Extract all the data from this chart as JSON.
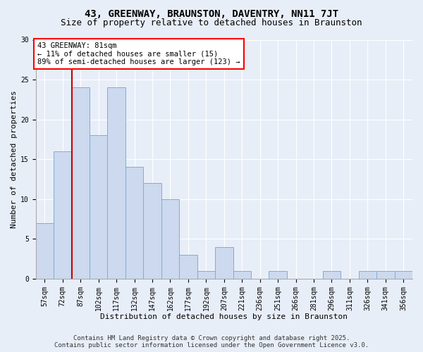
{
  "title": "43, GREENWAY, BRAUNSTON, DAVENTRY, NN11 7JT",
  "subtitle": "Size of property relative to detached houses in Braunston",
  "xlabel": "Distribution of detached houses by size in Braunston",
  "ylabel": "Number of detached properties",
  "categories": [
    "57sqm",
    "72sqm",
    "87sqm",
    "102sqm",
    "117sqm",
    "132sqm",
    "147sqm",
    "162sqm",
    "177sqm",
    "192sqm",
    "207sqm",
    "221sqm",
    "236sqm",
    "251sqm",
    "266sqm",
    "281sqm",
    "296sqm",
    "311sqm",
    "326sqm",
    "341sqm",
    "356sqm"
  ],
  "values": [
    7,
    16,
    24,
    18,
    24,
    14,
    12,
    10,
    3,
    1,
    4,
    1,
    0,
    1,
    0,
    0,
    1,
    0,
    1,
    1,
    1
  ],
  "bar_color": "#ccd9ee",
  "bar_edge_color": "#7bafd4",
  "bar_linewidth": 0.7,
  "ylim": [
    0,
    30
  ],
  "yticks": [
    0,
    5,
    10,
    15,
    20,
    25,
    30
  ],
  "red_line_x": 1.5,
  "annotation_text": "43 GREENWAY: 81sqm\n← 11% of detached houses are smaller (15)\n89% of semi-detached houses are larger (123) →",
  "annotation_box_color": "white",
  "annotation_box_edge_color": "red",
  "red_line_color": "#cc0000",
  "background_color": "#e8eef8",
  "footer_line1": "Contains HM Land Registry data © Crown copyright and database right 2025.",
  "footer_line2": "Contains public sector information licensed under the Open Government Licence v3.0.",
  "title_fontsize": 10,
  "subtitle_fontsize": 9,
  "xlabel_fontsize": 8,
  "ylabel_fontsize": 8,
  "tick_fontsize": 7,
  "annotation_fontsize": 7.5,
  "footer_fontsize": 6.5
}
